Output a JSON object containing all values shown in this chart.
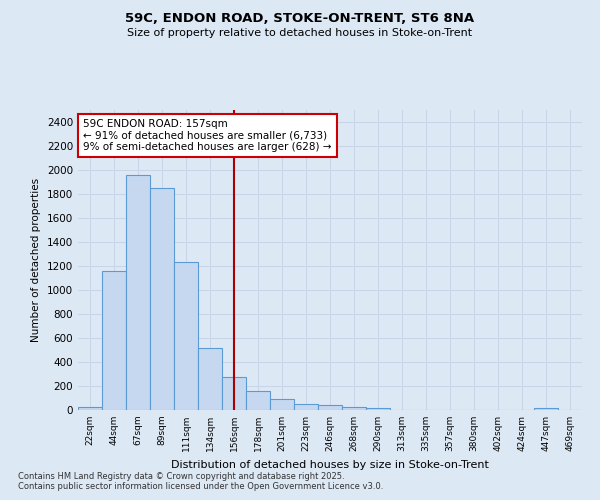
{
  "title1": "59C, ENDON ROAD, STOKE-ON-TRENT, ST6 8NA",
  "title2": "Size of property relative to detached houses in Stoke-on-Trent",
  "xlabel": "Distribution of detached houses by size in Stoke-on-Trent",
  "ylabel": "Number of detached properties",
  "categories": [
    "22sqm",
    "44sqm",
    "67sqm",
    "89sqm",
    "111sqm",
    "134sqm",
    "156sqm",
    "178sqm",
    "201sqm",
    "223sqm",
    "246sqm",
    "268sqm",
    "290sqm",
    "313sqm",
    "335sqm",
    "357sqm",
    "380sqm",
    "402sqm",
    "424sqm",
    "447sqm",
    "469sqm"
  ],
  "values": [
    28,
    1155,
    1960,
    1850,
    1230,
    515,
    275,
    155,
    90,
    48,
    40,
    22,
    18,
    0,
    0,
    0,
    0,
    0,
    0,
    15,
    0
  ],
  "bar_color": "#c5d8f0",
  "bar_edge_color": "#5b9bd5",
  "background_color": "#dde8f5",
  "grid_color": "#c8d4e8",
  "vline_x": 6,
  "vline_color": "#aa0000",
  "annotation_text": "59C ENDON ROAD: 157sqm\n← 91% of detached houses are smaller (6,733)\n9% of semi-detached houses are larger (628) →",
  "annotation_box_color": "white",
  "annotation_box_edge_color": "#cc0000",
  "footnote1": "Contains HM Land Registry data © Crown copyright and database right 2025.",
  "footnote2": "Contains public sector information licensed under the Open Government Licence v3.0.",
  "ylim": [
    0,
    2500
  ],
  "yticks": [
    0,
    200,
    400,
    600,
    800,
    1000,
    1200,
    1400,
    1600,
    1800,
    2000,
    2200,
    2400
  ]
}
